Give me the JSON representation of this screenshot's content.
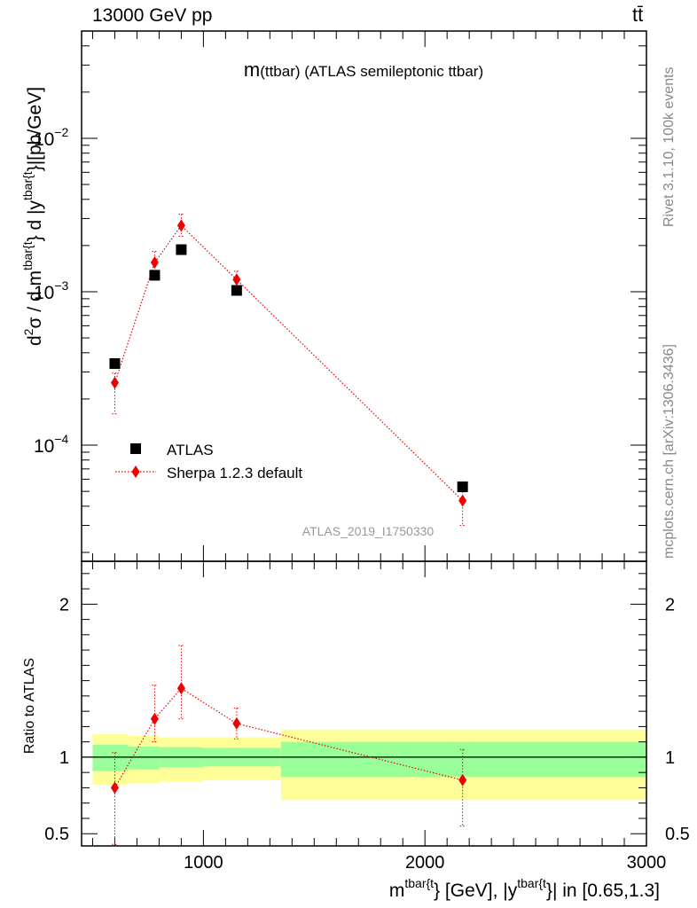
{
  "header": {
    "left": "13000 GeV pp",
    "right": "tt̄"
  },
  "side_notes": {
    "rivet": "Rivet 3.1.10,  100k events",
    "source": "mcplots.cern.ch [arXiv:1306.3436]"
  },
  "watermark": "ATLAS_2019_I1750330",
  "colors": {
    "data": "#000000",
    "mc": "#ee0000",
    "band_inner": "#99ff99",
    "band_outer": "#ffff99",
    "watermark": "#999999"
  },
  "chart_data": [
    {
      "type": "scatter",
      "title_main": "m",
      "title_rest": "(ttbar) (ATLAS semileptonic ttbar)",
      "ylabel_parts": [
        "d",
        "2",
        "σ / d m",
        "tbar{t",
        "} d |y",
        "tbar{t",
        "}|[pb/GeV]"
      ],
      "yscale": "log",
      "xlim": [
        450,
        3000
      ],
      "ylim": [
        1.75e-05,
        0.05
      ],
      "ytick_labels": [
        {
          "value": 0.0001,
          "base": "10",
          "exp": "−4"
        },
        {
          "value": 0.001,
          "base": "10",
          "exp": "−3"
        },
        {
          "value": 0.01,
          "base": "10",
          "exp": "−2"
        }
      ],
      "legend_position": "lower-left",
      "series": [
        {
          "name": "ATLAS",
          "marker": "square",
          "x": [
            600,
            780,
            900,
            1150,
            2170
          ],
          "y": [
            0.00034,
            0.00128,
            0.00188,
            0.00102,
            5.35e-05
          ],
          "yerr_lo": [
            2e-05,
            5e-05,
            7e-05,
            4e-05,
            3e-06
          ],
          "yerr_hi": [
            2e-05,
            5e-05,
            7e-05,
            4e-05,
            3e-06
          ]
        },
        {
          "name": "Sherpa 1.2.3 default",
          "marker": "diamond",
          "line": "dotted",
          "x": [
            600,
            780,
            900,
            1150,
            2170
          ],
          "y": [
            0.000255,
            0.00155,
            0.0027,
            0.0012,
            4.35e-05
          ],
          "yerr_lo": [
            9.5e-05,
            0.00022,
            0.0004,
            0.00016,
            1.35e-05
          ],
          "yerr_hi": [
            4e-05,
            0.00028,
            0.0005,
            0.00016,
            1.35e-05
          ]
        }
      ]
    },
    {
      "type": "scatter",
      "ylabel": "Ratio to ATLAS",
      "xlabel_parts": [
        "m",
        "tbar{t",
        "} [GeV], |y",
        "tbar{t",
        "}| in [0.65,1.3]"
      ],
      "xlim": [
        450,
        3000
      ],
      "ylim": [
        0.42,
        2.28
      ],
      "xticks": [
        1000,
        2000,
        3000
      ],
      "xtick_labels": [
        "1000",
        "2000",
        "3000"
      ],
      "yticks": [
        0.5,
        1,
        2
      ],
      "ytick_labels": [
        "0.5",
        "1",
        "2"
      ],
      "uncertainty_bands": [
        {
          "x0": 500,
          "x1": 660,
          "inner": [
            0.91,
            1.08
          ],
          "outer": [
            0.82,
            1.15
          ]
        },
        {
          "x0": 660,
          "x1": 800,
          "inner": [
            0.92,
            1.07
          ],
          "outer": [
            0.83,
            1.14
          ]
        },
        {
          "x0": 800,
          "x1": 1000,
          "inner": [
            0.935,
            1.065
          ],
          "outer": [
            0.84,
            1.13
          ]
        },
        {
          "x0": 1000,
          "x1": 1350,
          "inner": [
            0.94,
            1.06
          ],
          "outer": [
            0.85,
            1.13
          ]
        },
        {
          "x0": 1350,
          "x1": 3000,
          "inner": [
            0.87,
            1.1
          ],
          "outer": [
            0.72,
            1.18
          ]
        }
      ],
      "series": [
        {
          "name": "Sherpa 1.2.3 default",
          "marker": "diamond",
          "line": "dotted",
          "x": [
            600,
            780,
            900,
            1150,
            2170
          ],
          "y": [
            0.8,
            1.25,
            1.45,
            1.22,
            0.85
          ],
          "yerr_lo": [
            0.37,
            0.15,
            0.2,
            0.1,
            0.3
          ],
          "yerr_hi": [
            0.23,
            0.22,
            0.28,
            0.1,
            0.2
          ]
        }
      ]
    }
  ]
}
